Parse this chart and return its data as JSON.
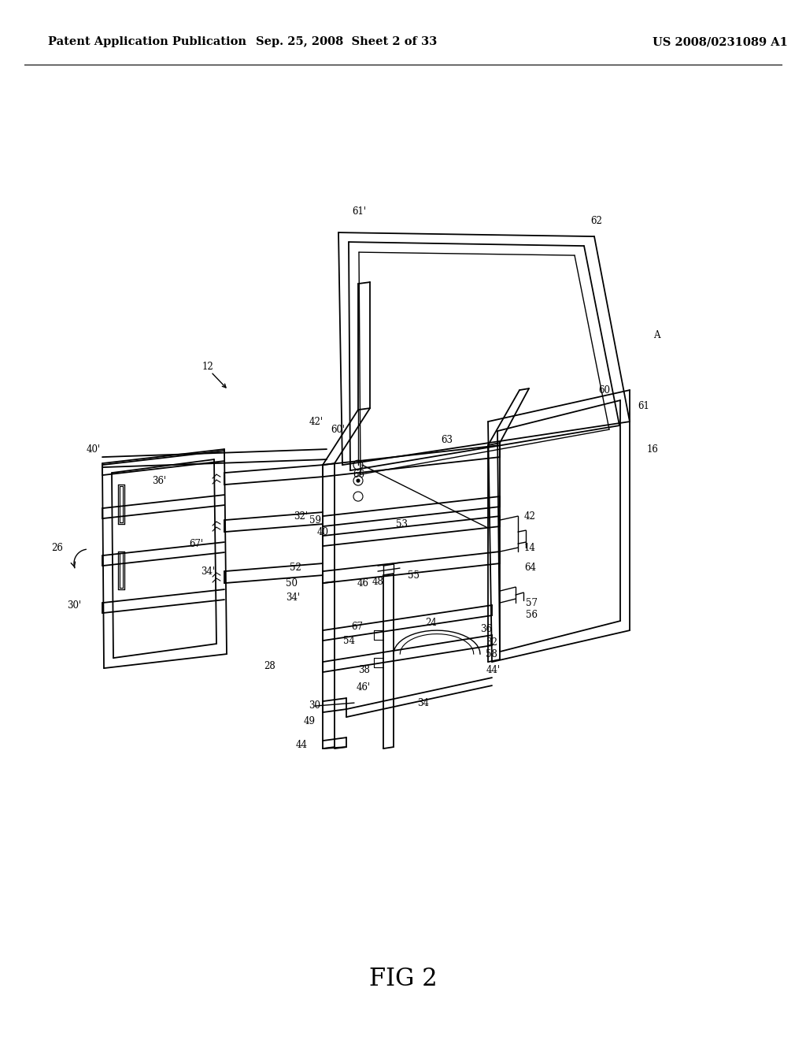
{
  "bg_color": "#ffffff",
  "header_left": "Patent Application Publication",
  "header_center": "Sep. 25, 2008  Sheet 2 of 33",
  "header_right": "US 2008/0231089 A1",
  "figure_label": "FIG 2",
  "header_fontsize": 10.5,
  "figure_label_fontsize": 22,
  "label_fontsize": 8.5
}
